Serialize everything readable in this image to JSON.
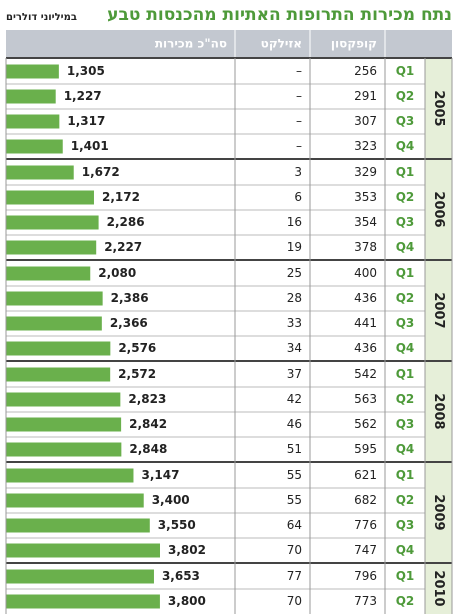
{
  "chart_data": {
    "type": "bar",
    "title": "נתח מכירות התרופות האתיות מהכנסות טבע",
    "subtitle": "במיליוני דולרים",
    "groups": [
      {
        "name": "2005",
        "categories": [
          "Q1",
          "Q2",
          "Q3",
          "Q4"
        ]
      },
      {
        "name": "2006",
        "categories": [
          "Q1",
          "Q2",
          "Q3",
          "Q4"
        ]
      },
      {
        "name": "2007",
        "categories": [
          "Q1",
          "Q2",
          "Q3",
          "Q4"
        ]
      },
      {
        "name": "2008",
        "categories": [
          "Q1",
          "Q2",
          "Q3",
          "Q4"
        ]
      },
      {
        "name": "2009",
        "categories": [
          "Q1",
          "Q2",
          "Q3",
          "Q4"
        ]
      },
      {
        "name": "2010",
        "categories": [
          "Q1",
          "Q2"
        ]
      }
    ],
    "series": [
      {
        "name": "קופקסון",
        "values": [
          256,
          291,
          307,
          323,
          329,
          353,
          354,
          378,
          400,
          436,
          441,
          436,
          542,
          563,
          562,
          595,
          621,
          682,
          776,
          747,
          796,
          773
        ]
      },
      {
        "name": "אזילקט",
        "values": [
          null,
          null,
          null,
          null,
          3,
          6,
          16,
          19,
          25,
          28,
          33,
          34,
          37,
          42,
          46,
          51,
          55,
          55,
          64,
          70,
          77,
          70
        ],
        "value_labels": [
          "–",
          "–",
          "–",
          "–",
          "3",
          "6",
          "16",
          "19",
          "25",
          "28",
          "33",
          "34",
          "37",
          "42",
          "46",
          "51",
          "55",
          "55",
          "64",
          "70",
          "77",
          "70"
        ]
      },
      {
        "name": "סה\"כ מכירות",
        "color": "#6ab04c",
        "values": [
          1305,
          1227,
          1317,
          1401,
          1672,
          2172,
          2286,
          2227,
          2080,
          2386,
          2366,
          2576,
          2572,
          2823,
          2842,
          2848,
          3147,
          3400,
          3550,
          3802,
          3653,
          3800
        ],
        "value_labels": [
          "1,305",
          "1,227",
          "1,317",
          "1,401",
          "1,672",
          "2,172",
          "2,286",
          "2,227",
          "2,080",
          "2,386",
          "2,366",
          "2,576",
          "2,572",
          "2,823",
          "2,842",
          "2,848",
          "3,147",
          "3,400",
          "3,550",
          "3,802",
          "3,653",
          "3,800"
        ]
      }
    ]
  }
}
